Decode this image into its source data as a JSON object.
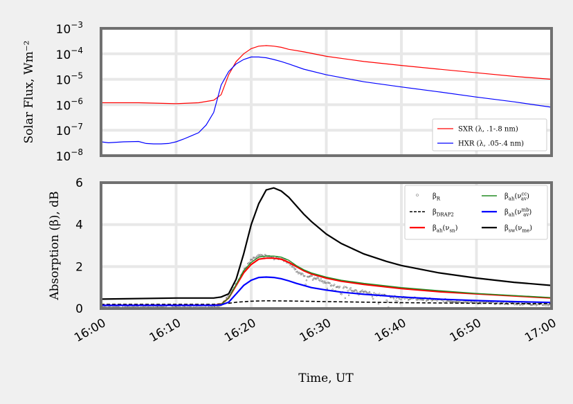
{
  "chart_data": [
    {
      "type": "line",
      "ylabel": "Solar Flux, Wm⁻²",
      "yscale": "log",
      "ylim": [
        1e-08,
        0.001
      ],
      "ytick_labels": [
        {
          "base": "10",
          "exp": "−8",
          "v": 1e-08
        },
        {
          "base": "10",
          "exp": "−7",
          "v": 1e-07
        },
        {
          "base": "10",
          "exp": "−6",
          "v": 1e-06
        },
        {
          "base": "10",
          "exp": "−5",
          "v": 1e-05
        },
        {
          "base": "10",
          "exp": "−4",
          "v": 0.0001
        },
        {
          "base": "10",
          "exp": "−3",
          "v": 0.001
        }
      ],
      "grid": true,
      "legend_position": "lower-right",
      "series": [
        {
          "name": "SXR (λ, .1-.8 nm)",
          "color": "#ff0000",
          "x": [
            0,
            5,
            10,
            13,
            15,
            16,
            17,
            18,
            19,
            20,
            21,
            22,
            23,
            24,
            25,
            27,
            30,
            35,
            40,
            45,
            50,
            55,
            60
          ],
          "y": [
            1.2e-06,
            1.2e-06,
            1.1e-06,
            1.2e-06,
            1.5e-06,
            2.5e-06,
            1.5e-05,
            5e-05,
            0.0001,
            0.00016,
            0.0002,
            0.00021,
            0.0002,
            0.00018,
            0.00015,
            0.00012,
            8e-05,
            5e-05,
            3.5e-05,
            2.5e-05,
            1.8e-05,
            1.3e-05,
            1e-05
          ]
        },
        {
          "name": "HXR (λ, .05-.4 nm)",
          "color": "#0000ff",
          "x": [
            0,
            1,
            3,
            5,
            6,
            7,
            8,
            9,
            10,
            11,
            12,
            13,
            14,
            15,
            16,
            17,
            18,
            19,
            20,
            21,
            22,
            23,
            24,
            25,
            27,
            30,
            35,
            40,
            45,
            50,
            55,
            60
          ],
          "y": [
            3.5e-08,
            3.2e-08,
            3.5e-08,
            3.6e-08,
            3e-08,
            2.9e-08,
            2.9e-08,
            3e-08,
            3.5e-08,
            4.5e-08,
            6e-08,
            8e-08,
            1.6e-07,
            5e-07,
            6e-06,
            2e-05,
            4e-05,
            6e-05,
            7.5e-05,
            7.5e-05,
            7e-05,
            6e-05,
            5e-05,
            4e-05,
            2.5e-05,
            1.5e-05,
            8e-06,
            5e-06,
            3.2e-06,
            2e-06,
            1.3e-06,
            8e-07
          ]
        }
      ]
    },
    {
      "type": "line",
      "xlabel": "Time, UT",
      "ylabel": "Absorption (β), dB",
      "ylim": [
        0,
        6
      ],
      "yticks": [
        0,
        2,
        4,
        6
      ],
      "xticks": [
        "16:00",
        "16:10",
        "16:20",
        "16:30",
        "16:40",
        "16:50",
        "17:00"
      ],
      "xlim_minutes": [
        0,
        60
      ],
      "grid": true,
      "legend_position": "upper-right",
      "series": [
        {
          "name": "βR",
          "sym": "β",
          "sub": "R",
          "sup": "",
          "style": "points",
          "color": "#555555",
          "x": [
            0,
            10,
            15,
            16,
            17,
            18,
            19,
            20,
            21,
            22,
            23,
            24,
            25,
            26,
            27,
            28,
            29,
            30,
            32,
            35,
            38,
            40,
            45,
            50,
            55,
            60
          ],
          "y": [
            0.1,
            0.1,
            0.1,
            0.2,
            0.6,
            1.2,
            1.8,
            2.3,
            2.5,
            2.5,
            2.4,
            2.4,
            2.2,
            1.8,
            1.6,
            1.5,
            1.4,
            1.2,
            1.0,
            0.8,
            0.6,
            0.5,
            0.4,
            0.3,
            0.25,
            0.2
          ]
        },
        {
          "name": "βDRAP2",
          "sym": "β",
          "sub": "DRAP2",
          "sup": "",
          "style": "dashed",
          "color": "#000000",
          "x": [
            0,
            10,
            15,
            17,
            18,
            20,
            22,
            25,
            30,
            40,
            50,
            60
          ],
          "y": [
            0.2,
            0.2,
            0.2,
            0.25,
            0.3,
            0.35,
            0.37,
            0.36,
            0.33,
            0.28,
            0.25,
            0.23
          ]
        },
        {
          "name": "βah(νsn)",
          "sym": "β",
          "sub": "ah",
          "paren_sym": "ν",
          "paren_sub": "sn",
          "paren_sup": "",
          "style": "solid",
          "color": "#ff0000",
          "x": [
            0,
            10,
            15,
            16,
            17,
            18,
            19,
            20,
            21,
            22,
            23,
            24,
            25,
            26,
            27,
            28,
            30,
            32,
            35,
            40,
            45,
            50,
            55,
            60
          ],
          "y": [
            0.15,
            0.15,
            0.15,
            0.2,
            0.5,
            1.1,
            1.7,
            2.1,
            2.35,
            2.4,
            2.4,
            2.35,
            2.2,
            2.0,
            1.8,
            1.65,
            1.45,
            1.3,
            1.15,
            0.95,
            0.8,
            0.7,
            0.6,
            0.5
          ]
        },
        {
          "name": "βah(νavcc)",
          "sym": "β",
          "sub": "ah",
          "paren_sym": "ν",
          "paren_sub": "av",
          "paren_sup": "cc",
          "style": "solid",
          "color": "#228b22",
          "x": [
            0,
            10,
            15,
            16,
            17,
            18,
            19,
            20,
            21,
            22,
            23,
            24,
            25,
            26,
            27,
            28,
            30,
            32,
            35,
            40,
            45,
            50,
            55,
            60
          ],
          "y": [
            0.15,
            0.15,
            0.15,
            0.2,
            0.5,
            1.15,
            1.8,
            2.2,
            2.45,
            2.5,
            2.5,
            2.45,
            2.3,
            2.05,
            1.85,
            1.7,
            1.5,
            1.35,
            1.2,
            1.0,
            0.85,
            0.72,
            0.62,
            0.52
          ]
        },
        {
          "name": "βah(νavmb)",
          "sym": "β",
          "sub": "ah",
          "paren_sym": "ν",
          "paren_sub": "av",
          "paren_sup": "mb",
          "style": "solid",
          "color": "#0000ff",
          "x": [
            0,
            10,
            15,
            16,
            17,
            18,
            19,
            20,
            21,
            22,
            23,
            24,
            25,
            26,
            27,
            28,
            30,
            32,
            35,
            40,
            45,
            50,
            55,
            60
          ],
          "y": [
            0.15,
            0.15,
            0.15,
            0.17,
            0.3,
            0.7,
            1.1,
            1.35,
            1.48,
            1.5,
            1.48,
            1.42,
            1.32,
            1.2,
            1.1,
            1.0,
            0.88,
            0.78,
            0.68,
            0.55,
            0.45,
            0.38,
            0.33,
            0.29
          ]
        },
        {
          "name": "βsw(νme)",
          "sym": "β",
          "sub": "sw",
          "paren_sym": "ν",
          "paren_sub": "me",
          "paren_sup": "",
          "style": "solid",
          "color": "#000000",
          "x": [
            0,
            10,
            15,
            16,
            17,
            18,
            19,
            20,
            21,
            22,
            23,
            24,
            25,
            26,
            27,
            28,
            30,
            32,
            35,
            38,
            40,
            45,
            50,
            55,
            60
          ],
          "y": [
            0.45,
            0.5,
            0.5,
            0.55,
            0.7,
            1.4,
            2.6,
            4.0,
            5.0,
            5.65,
            5.75,
            5.6,
            5.3,
            4.9,
            4.5,
            4.15,
            3.55,
            3.1,
            2.6,
            2.25,
            2.05,
            1.7,
            1.45,
            1.25,
            1.1
          ]
        }
      ]
    }
  ]
}
